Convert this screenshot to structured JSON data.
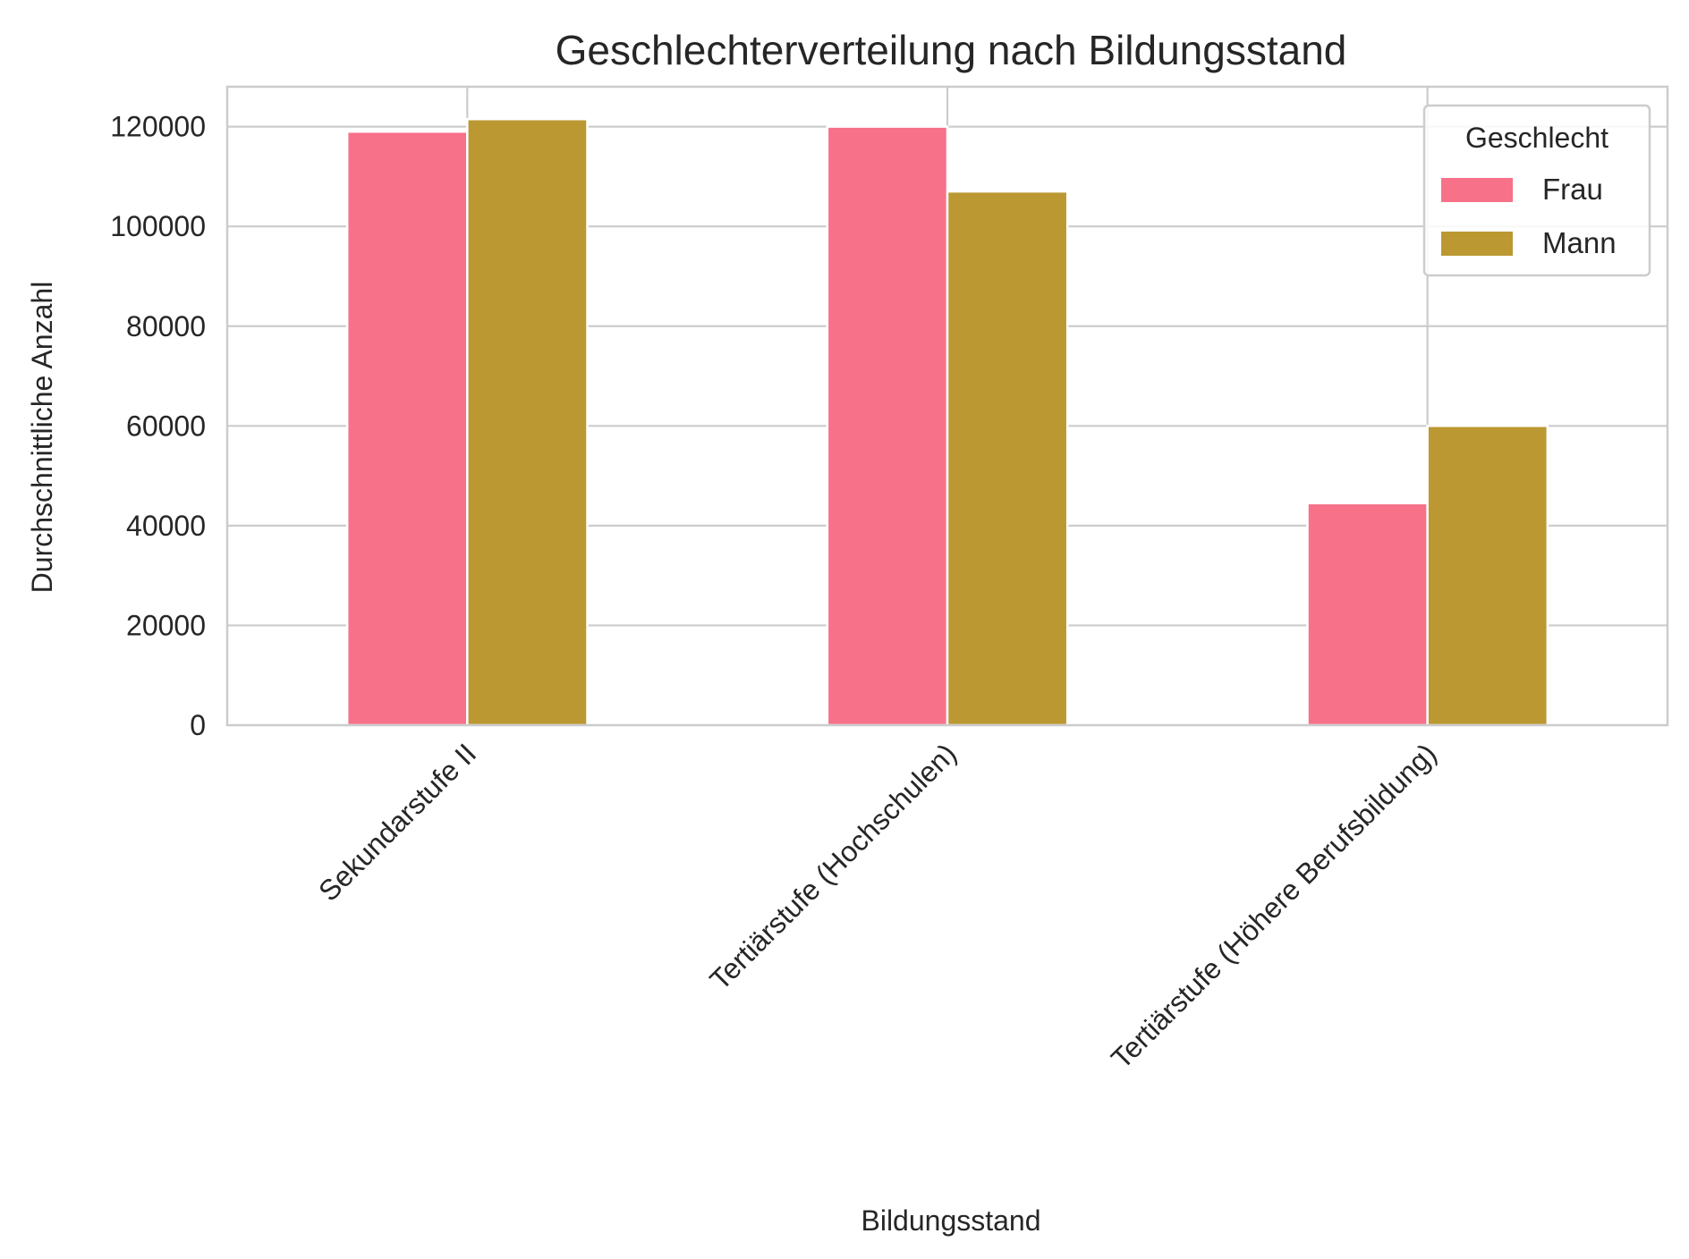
{
  "chart_data": {
    "type": "bar",
    "title": "Geschlechterverteilung nach Bildungsstand",
    "xlabel": "Bildungsstand",
    "ylabel": "Durchschnittliche Anzahl",
    "categories": [
      "Sekundarstufe II",
      "Tertiärstufe (Hochschulen)",
      "Tertiärstufe (Höhere Berufsbildung)"
    ],
    "series": [
      {
        "name": "Frau",
        "values": [
          119000,
          120000,
          44500
        ],
        "color": "#f77189"
      },
      {
        "name": "Mann",
        "values": [
          121500,
          107000,
          60000
        ],
        "color": "#bb9832"
      }
    ],
    "yticks": [
      "0",
      "20000",
      "40000",
      "60000",
      "80000",
      "100000",
      "120000"
    ],
    "ylim": [
      0,
      128000
    ],
    "grid": true,
    "legend": {
      "title": "Geschlecht",
      "placement": "top-right"
    }
  }
}
